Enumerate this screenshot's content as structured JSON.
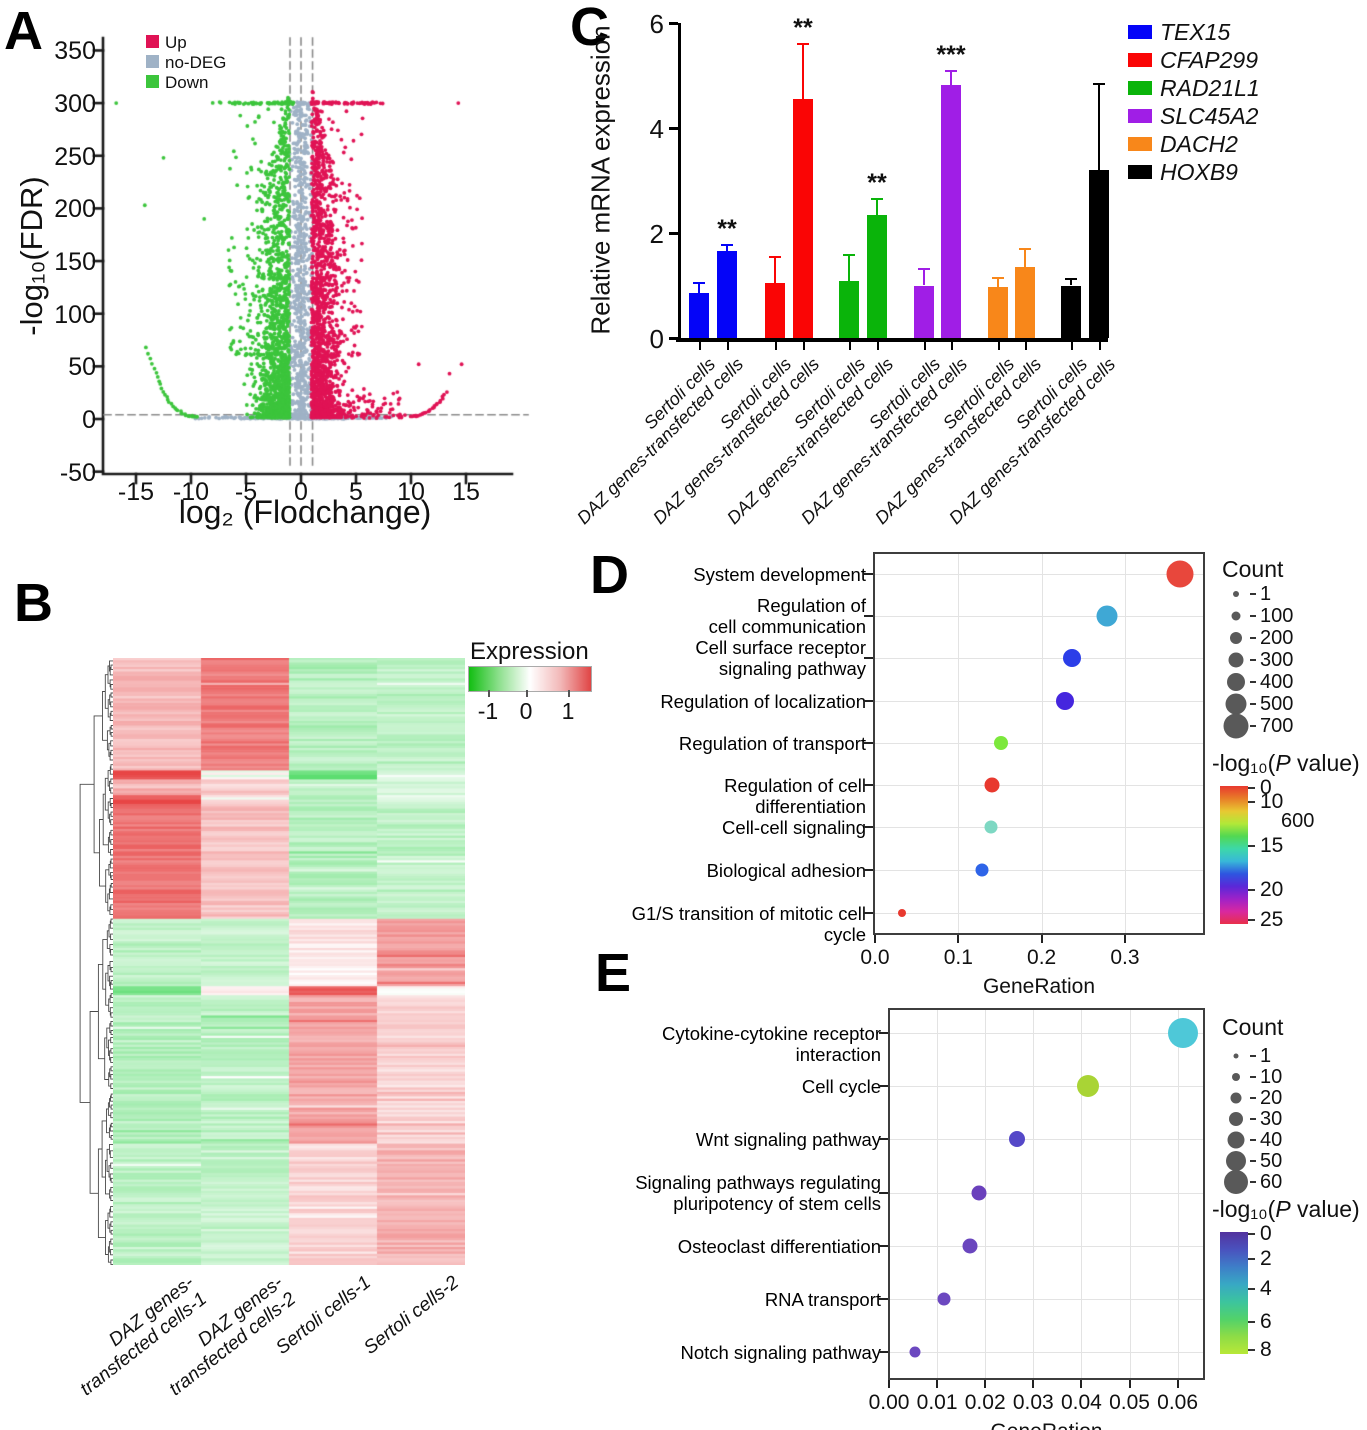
{
  "panels": {
    "a": {
      "letter": "A"
    },
    "b": {
      "letter": "B"
    },
    "c": {
      "letter": "C"
    },
    "d": {
      "letter": "D"
    },
    "e": {
      "letter": "E"
    }
  },
  "chart_data": [
    {
      "id": "volcano",
      "type": "scatter",
      "xlabel": "log₂ (Flodchange)",
      "ylabel": "-log₁₀(FDR)",
      "xlim": [
        -18.5,
        19.5
      ],
      "ylim": [
        -50,
        350
      ],
      "xticks": [
        -15,
        -10,
        -5,
        0,
        5,
        10,
        15
      ],
      "yticks": [
        350,
        300,
        250,
        200,
        150,
        100,
        50,
        0,
        -50
      ],
      "legend": [
        {
          "label": "Up",
          "color": "#E01355"
        },
        {
          "label": "no-DEG",
          "color": "#9FB2C6"
        },
        {
          "label": "Down",
          "color": "#3CC53C"
        }
      ],
      "threshold_lines": {
        "horizontal_y": 4,
        "vertical_x": [
          -1.0,
          0.0,
          1.05
        ],
        "style": "dashed",
        "color": "#8a8a8a"
      },
      "cap_row_y": 300,
      "groups": {
        "no_deg": {
          "color": "#9FB2C6",
          "cloud_count": 700,
          "bottom_band_count": 330,
          "cap_row_count": 14
        },
        "down": {
          "color": "#3CC53C",
          "cloud_count": 1600,
          "mid_count": 130,
          "cap_row_count": 60,
          "arc": {
            "x_start": -9.4,
            "x_end": -14.0,
            "y_start": 2.5,
            "y_end": 68
          }
        },
        "up": {
          "color": "#E01355",
          "cloud_count": 1550,
          "mid_count": 150,
          "low_right_count": 70,
          "cap_row_count": 80,
          "arc": {
            "x_start": 9.9,
            "x_end": 13.2,
            "y_start": 2.5,
            "y_end": 25
          }
        }
      },
      "outliers": [
        {
          "x": -16.8,
          "y": 300,
          "g": "down"
        },
        {
          "x": -14.2,
          "y": 203,
          "g": "down"
        },
        {
          "x": -12.5,
          "y": 248,
          "g": "down"
        },
        {
          "x": -8.8,
          "y": 190,
          "g": "down"
        },
        {
          "x": 14.3,
          "y": 300,
          "g": "up"
        },
        {
          "x": 13.5,
          "y": 43,
          "g": "up"
        },
        {
          "x": 10.7,
          "y": 52,
          "g": "up"
        },
        {
          "x": 14.6,
          "y": 52,
          "g": "up"
        }
      ],
      "seed": 42
    },
    {
      "id": "heatmap",
      "type": "heatmap",
      "columns": [
        "DAZ genes-\ntransfected cells-1",
        "DAZ genes-\ntransfected cells-2",
        "Sertoli cells-1",
        "Sertoli cells-2"
      ],
      "colorbar": {
        "title": "Expression",
        "ticks": [
          "-1",
          "0",
          "1"
        ],
        "gradient": [
          "#12BE12",
          "#8FE08F",
          "#FFFFFF",
          "#F2B8B8",
          "#E04545"
        ]
      },
      "value_range": [
        -1.35,
        1.35
      ],
      "row_blocks": [
        {
          "frac": 0.185,
          "means": [
            0.5,
            0.95,
            -0.5,
            -0.45
          ]
        },
        {
          "frac": 0.013,
          "means": [
            1.35,
            -0.3,
            -1.0,
            -0.2
          ]
        },
        {
          "frac": 0.027,
          "means": [
            0.55,
            0.35,
            -0.35,
            -0.3
          ]
        },
        {
          "frac": 0.013,
          "means": [
            1.3,
            0.2,
            -0.55,
            -0.25
          ]
        },
        {
          "frac": 0.19,
          "means": [
            1.0,
            0.45,
            -0.5,
            -0.45
          ]
        },
        {
          "frac": 0.112,
          "means": [
            -0.45,
            -0.4,
            0.15,
            0.75
          ]
        },
        {
          "frac": 0.013,
          "means": [
            -0.9,
            0.05,
            1.25,
            0.05
          ]
        },
        {
          "frac": 0.247,
          "means": [
            -0.5,
            -0.45,
            0.65,
            0.3
          ]
        },
        {
          "frac": 0.2,
          "means": [
            -0.45,
            -0.4,
            0.3,
            0.55
          ]
        }
      ],
      "noise": 0.16,
      "seed": 7
    },
    {
      "id": "qpcr_bars",
      "type": "bar",
      "ylabel": "Relative mRNA expression",
      "ylim": [
        0,
        6
      ],
      "yticks": [
        0,
        2,
        4,
        6
      ],
      "conditions": [
        "Sertoli cells",
        "DAZ genes-transfected cells"
      ],
      "genes": [
        {
          "name": "TEX15",
          "color": "#0404F8",
          "values": [
            0.85,
            1.65
          ],
          "errors": [
            0.2,
            0.12
          ],
          "sig": "**"
        },
        {
          "name": "CFAP299",
          "color": "#FA0505",
          "values": [
            1.05,
            4.55
          ],
          "errors": [
            0.5,
            1.05
          ],
          "sig": "**"
        },
        {
          "name": "RAD21L1",
          "color": "#0AB40A",
          "values": [
            1.08,
            2.35
          ],
          "errors": [
            0.5,
            0.3
          ],
          "sig": "**"
        },
        {
          "name": "SLC45A2",
          "color": "#A01EE6",
          "values": [
            1.0,
            4.82
          ],
          "errors": [
            0.32,
            0.27
          ],
          "sig": "***"
        },
        {
          "name": "DACH2",
          "color": "#F8871A",
          "values": [
            0.98,
            1.35
          ],
          "errors": [
            0.17,
            0.34
          ],
          "sig": ""
        },
        {
          "name": "HOXB9",
          "color": "#000000",
          "values": [
            1.0,
            3.2
          ],
          "errors": [
            0.13,
            1.63
          ],
          "sig": ""
        }
      ]
    },
    {
      "id": "go_dotplot",
      "type": "scatter-dot",
      "xlabel": "GeneRation",
      "xtick_labels": [
        "0.0",
        "0.1",
        "0.2",
        "0.3"
      ],
      "xtick_values": [
        0,
        0.1,
        0.2,
        0.3
      ],
      "xlim": [
        0,
        0.398
      ],
      "points": [
        {
          "term": "System development",
          "gene_ratio": 0.366,
          "count": 700,
          "color": "#E8473C",
          "diameter": 27
        },
        {
          "term": "Regulation of\ncell communication",
          "gene_ratio": 0.279,
          "count": 420,
          "color": "#3FA8D5",
          "diameter": 21
        },
        {
          "term": "Cell surface receptor\nsignaling pathway",
          "gene_ratio": 0.236,
          "count": 320,
          "color": "#2B3EE8",
          "diameter": 18
        },
        {
          "term": "Regulation of localization",
          "gene_ratio": 0.228,
          "count": 320,
          "color": "#4526DE",
          "diameter": 18
        },
        {
          "term": "Regulation of transport",
          "gene_ratio": 0.151,
          "count": 220,
          "color": "#7CE83C",
          "diameter": 14
        },
        {
          "term": "Regulation of cell differentiation",
          "gene_ratio": 0.14,
          "count": 230,
          "color": "#E8392F",
          "diameter": 15
        },
        {
          "term": "Cell-cell signaling",
          "gene_ratio": 0.139,
          "count": 200,
          "color": "#7ED8C3",
          "diameter": 13
        },
        {
          "term": "Biological adhesion",
          "gene_ratio": 0.129,
          "count": 190,
          "color": "#2E64E8",
          "diameter": 13
        },
        {
          "term": "G1/S transition of mitotic cell cycle",
          "gene_ratio": 0.032,
          "count": 60,
          "color": "#E8392F",
          "diameter": 8
        }
      ],
      "count_legend": {
        "title": "Count",
        "entries": [
          "1",
          "100",
          "200",
          "300",
          "400",
          "500",
          "700"
        ],
        "stray_label": "600"
      },
      "colorbar": {
        "title_prefix": "-log₁₀(",
        "title_italic": "P",
        "title_suffix": " value)",
        "ticks": [
          "0",
          "10",
          "15",
          "20",
          "25"
        ],
        "tick_offsets": [
          2,
          16,
          60,
          104,
          134
        ],
        "colors": [
          "#E8392F",
          "#E87D28",
          "#E8C832",
          "#B2E838",
          "#52D852",
          "#3DD8A8",
          "#38B8D8",
          "#2E55E0",
          "#5A28D8",
          "#9E22C8",
          "#D828A0",
          "#E8304A"
        ]
      }
    },
    {
      "id": "kegg_dotplot",
      "type": "scatter-dot",
      "xlabel": "GeneRation",
      "xtick_labels": [
        "0.00",
        "0.01",
        "0.02",
        "0.03",
        "0.04",
        "0.05",
        "0.06"
      ],
      "xtick_values": [
        0,
        0.01,
        0.02,
        0.03,
        0.04,
        0.05,
        0.06
      ],
      "xlim": [
        0,
        0.0661
      ],
      "points": [
        {
          "term": "Cytokine-cytokine receptor interaction",
          "gene_ratio": 0.0611,
          "count": 60,
          "color": "#4EC8D8",
          "diameter": 30
        },
        {
          "term": "Cell cycle",
          "gene_ratio": 0.0414,
          "count": 35,
          "color": "#A9D435",
          "diameter": 22
        },
        {
          "term": "Wnt signaling pathway",
          "gene_ratio": 0.0266,
          "count": 18,
          "color": "#5548C8",
          "diameter": 16
        },
        {
          "term": "Signaling pathways regulating\npluripotency of stem cells",
          "gene_ratio": 0.0187,
          "count": 15,
          "color": "#6A40BC",
          "diameter": 15
        },
        {
          "term": "Osteoclast differentiation",
          "gene_ratio": 0.0169,
          "count": 14,
          "color": "#6A46BE",
          "diameter": 15
        },
        {
          "term": "RNA transport",
          "gene_ratio": 0.0114,
          "count": 12,
          "color": "#6C48C0",
          "diameter": 13
        },
        {
          "term": "Notch signaling pathway",
          "gene_ratio": 0.0054,
          "count": 8,
          "color": "#6C48C0",
          "diameter": 11
        }
      ],
      "count_legend": {
        "title": "Count",
        "entries": [
          "1",
          "10",
          "20",
          "30",
          "40",
          "50",
          "60"
        ]
      },
      "colorbar": {
        "title_prefix": "-log₁₀(",
        "title_italic": "P",
        "title_suffix": " value)",
        "ticks": [
          "0",
          "2",
          "4",
          "6",
          "8"
        ],
        "tick_offsets": [
          2,
          27,
          57,
          90,
          118
        ],
        "colors": [
          "#52329E",
          "#4A52BE",
          "#3E7EC8",
          "#38A8C4",
          "#3CC49E",
          "#52D26A",
          "#8EDC46",
          "#B8E838"
        ]
      }
    }
  ]
}
